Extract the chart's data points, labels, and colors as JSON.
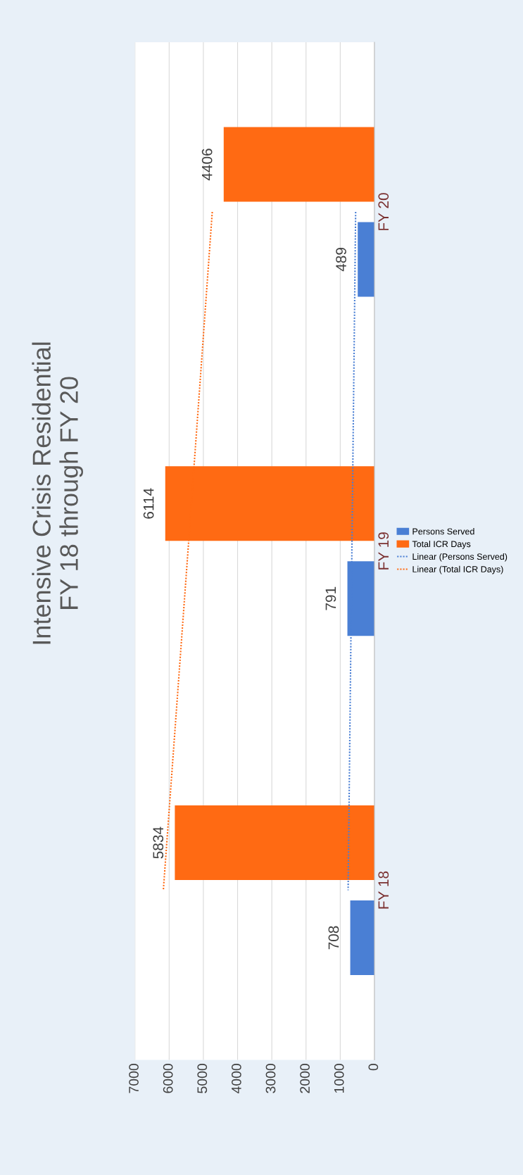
{
  "chart_data": {
    "type": "bar",
    "orientation": "horizontal",
    "title": "Intensive Crisis Residential\nFY 18 through FY 20",
    "categories": [
      "FY 20",
      "FY 19",
      "FY 18"
    ],
    "series": [
      {
        "name": "Persons Served",
        "color": "#4a7fd4",
        "values": [
          489,
          791,
          708
        ],
        "value_labels": [
          "489",
          "791",
          "708"
        ]
      },
      {
        "name": "Total ICR Days",
        "color": "#ff6a13",
        "values": [
          4406,
          6114,
          5834
        ],
        "value_labels": [
          "4406",
          "6114",
          "5834"
        ]
      },
      {
        "name": "Linear (Persons Served)",
        "type": "line",
        "line_style": "dotted",
        "color": "#4a7fd4",
        "values": [
          550,
          660,
          770
        ]
      },
      {
        "name": "Linear (Total ICR Days)",
        "type": "line",
        "line_style": "dotted",
        "color": "#ff6a13",
        "values": [
          4740,
          5450,
          6170
        ]
      }
    ],
    "xlim": [
      7000,
      0
    ],
    "xticks": [
      0,
      1000,
      2000,
      3000,
      4000,
      5000,
      6000,
      7000
    ],
    "grid": "x",
    "legend": "right"
  }
}
